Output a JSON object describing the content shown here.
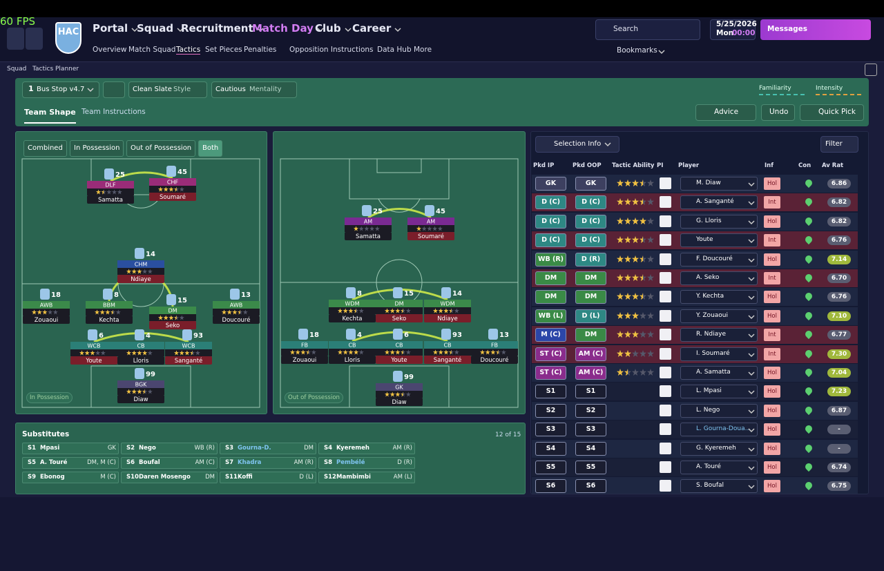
{
  "top": {
    "fps": "60 FPS",
    "club": "HAC",
    "menu": [
      "Portal",
      "Squad",
      "Recruitment",
      "Match Day",
      "Club",
      "Career"
    ],
    "submenu": [
      "Overview",
      "Match Squad",
      "Tactics",
      "Set Pieces",
      "Penalties",
      "Opposition Instructions",
      "Data Hub",
      "More"
    ],
    "search": "Search",
    "date": "5/25/2026",
    "day": "Mon",
    "time": "00:00",
    "messages": "Messages",
    "bookmarks": "Bookmarks"
  },
  "breadcrumb": [
    "Squad",
    "Tactics Planner"
  ],
  "toolbar": {
    "slot": "1",
    "tactic": "Bus Stop v4.7",
    "style": "Clean Slate",
    "style_label": "Style",
    "mentality": "Cautious",
    "mentality_label": "Mentality",
    "familiarity": "Familiarity",
    "intensity": "Intensity",
    "tabs": [
      "Team Shape",
      "Team Instructions"
    ],
    "advice": "Advice",
    "undo": "Undo",
    "quick_pick": "Quick Pick"
  },
  "pitches": [
    {
      "modes": [
        "Combined",
        "In Possession",
        "Out of Possession",
        "Both"
      ],
      "label": "In Possession",
      "players": [
        {
          "number": 25,
          "role": "DLF",
          "name": "Samatta",
          "stars": 1.5,
          "colors": [
            "#9a2c78",
            "#1b1b24"
          ]
        },
        {
          "number": 45,
          "role": "CHF",
          "name": "Soumaré",
          "stars": 3.5,
          "colors": [
            "#9a2c78",
            "#7a1e2a"
          ]
        },
        {
          "number": 14,
          "role": "CHM",
          "name": "Ndiaye",
          "stars": 3,
          "colors": [
            "#2a4fa0",
            "#7a1e2a"
          ]
        },
        {
          "number": 18,
          "role": "AWB",
          "name": "Zouaoui",
          "stars": 3,
          "colors": [
            "#3b8a4a",
            "#1b1b24"
          ]
        },
        {
          "number": 8,
          "role": "BBM",
          "name": "Kechta",
          "stars": 3.5,
          "colors": [
            "#3b8a4a",
            "#1b1b24"
          ]
        },
        {
          "number": 15,
          "role": "DM",
          "name": "Seko",
          "stars": 3.5,
          "colors": [
            "#3b8a4a",
            "#7a1e2a"
          ]
        },
        {
          "number": 13,
          "role": "AWB",
          "name": "Doucouré",
          "stars": 3.5,
          "colors": [
            "#3b8a4a",
            "#1b1b24"
          ]
        },
        {
          "number": 6,
          "role": "WCB",
          "name": "Youte",
          "stars": 3,
          "colors": [
            "#2b7f77",
            "#7a1e2a"
          ]
        },
        {
          "number": 4,
          "role": "CB",
          "name": "Lloris",
          "stars": 4,
          "colors": [
            "#2b7f77",
            "#1b1b24"
          ]
        },
        {
          "number": 93,
          "role": "WCB",
          "name": "Sanganté",
          "stars": 3.5,
          "colors": [
            "#2b7f77",
            "#7a1e2a"
          ]
        },
        {
          "number": 99,
          "role": "BGK",
          "name": "Diaw",
          "stars": 3.5,
          "colors": [
            "#4b4670",
            "#1b1b24"
          ]
        }
      ]
    },
    {
      "label": "Out of Possession",
      "players": [
        {
          "number": 25,
          "role": "AM",
          "name": "Samatta",
          "stars": 1,
          "colors": [
            "#7a2a92",
            "#1b1b24"
          ]
        },
        {
          "number": 45,
          "role": "AM",
          "name": "Soumaré",
          "stars": 1,
          "colors": [
            "#7a2a92",
            "#7a1e2a"
          ]
        },
        {
          "number": 8,
          "role": "WDM",
          "name": "Kechta",
          "stars": 3.5,
          "colors": [
            "#3b8a4a",
            "#1b1b24"
          ]
        },
        {
          "number": 15,
          "role": "DM",
          "name": "Seko",
          "stars": 3.5,
          "colors": [
            "#3b8a4a",
            "#7a1e2a"
          ]
        },
        {
          "number": 14,
          "role": "WDM",
          "name": "Ndiaye",
          "stars": 3.5,
          "colors": [
            "#3b8a4a",
            "#7a1e2a"
          ]
        },
        {
          "number": 18,
          "role": "FB",
          "name": "Zouaoui",
          "stars": 3.5,
          "colors": [
            "#2b7f77",
            "#1b1b24"
          ]
        },
        {
          "number": 4,
          "role": "CB",
          "name": "Lloris",
          "stars": 4,
          "colors": [
            "#2b7f77",
            "#1b1b24"
          ]
        },
        {
          "number": 6,
          "role": "CB",
          "name": "Youte",
          "stars": 3.5,
          "colors": [
            "#2b7f77",
            "#7a1e2a"
          ]
        },
        {
          "number": 93,
          "role": "CB",
          "name": "Sanganté",
          "stars": 3.5,
          "colors": [
            "#2b7f77",
            "#7a1e2a"
          ]
        },
        {
          "number": 13,
          "role": "FB",
          "name": "Doucouré",
          "stars": 3.5,
          "colors": [
            "#2b7f77",
            "#1b1b24"
          ]
        },
        {
          "number": 99,
          "role": "GK",
          "name": "Diaw",
          "stars": 3.5,
          "colors": [
            "#4b4670",
            "#1b1b24"
          ]
        }
      ]
    }
  ],
  "substitutes": {
    "title": "Substitutes",
    "count": "12 of 15",
    "players": [
      {
        "slot": "S1",
        "name": "Mpasi",
        "position": "GK"
      },
      {
        "slot": "S2",
        "name": "Nego",
        "position": "WB (R)"
      },
      {
        "slot": "S3",
        "name": "Gourna-D.",
        "position": "DM",
        "color": "#7fc4f0"
      },
      {
        "slot": "S4",
        "name": "Kyeremeh",
        "position": "AM (R)"
      },
      {
        "slot": "S5",
        "name": "A. Touré",
        "position": "DM, M (C)"
      },
      {
        "slot": "S6",
        "name": "Boufal",
        "position": "AM (C)"
      },
      {
        "slot": "S7",
        "name": "Khadra",
        "position": "AM (R)",
        "color": "#7fc4f0"
      },
      {
        "slot": "S8",
        "name": "Pembélé",
        "position": "D (R)",
        "color": "#7fc4f0"
      },
      {
        "slot": "S9",
        "name": "Ebonog",
        "position": "M (C)"
      },
      {
        "slot": "S10",
        "name": "Daren Mosengo",
        "position": "DM"
      },
      {
        "slot": "S11",
        "name": "Koffi",
        "position": "D (L)"
      },
      {
        "slot": "S12",
        "name": "Mambimbi",
        "position": "AM (L)"
      }
    ]
  },
  "selection": {
    "info": "Selection Info",
    "filter": "Filter",
    "columns": [
      "Pkd IP",
      "Pkd OOP",
      "Tactic Ability",
      "PI",
      "Player",
      "Inf",
      "Con",
      "Av Rat"
    ],
    "rows": [
      {
        "ip": "GK",
        "oop": "GK",
        "ability": 3.5,
        "player": "M. Diaw",
        "inf": "Hol",
        "rating": "6.86",
        "colors": [
          "#3d4060",
          "#3d4060",
          "#1e2742",
          "#5a5e72"
        ]
      },
      {
        "ip": "D (C)",
        "oop": "D (C)",
        "ability": 3.5,
        "player": "A. Sanganté",
        "inf": "Int",
        "rating": "6.82",
        "colors": [
          "#2e8884",
          "#2e8884",
          "#5a2236",
          "#5a5e72"
        ]
      },
      {
        "ip": "D (C)",
        "oop": "D (C)",
        "ability": 4,
        "player": "G. Lloris",
        "inf": "Hol",
        "rating": "6.82",
        "colors": [
          "#2e8884",
          "#2e8884",
          "#1e2742",
          "#5a5e72"
        ]
      },
      {
        "ip": "D (C)",
        "oop": "D (C)",
        "ability": 3.5,
        "player": "Youte",
        "inf": "Int",
        "rating": "6.76",
        "colors": [
          "#2e8884",
          "#2e8884",
          "#5a2236",
          "#5a5e72"
        ]
      },
      {
        "ip": "WB (R)",
        "oop": "D (R)",
        "ability": 3.5,
        "player": "F. Doucouré",
        "inf": "Hol",
        "rating": "7.14",
        "colors": [
          "#3a8a46",
          "#2e8884",
          "#1e2742",
          "#a0b83c"
        ]
      },
      {
        "ip": "DM",
        "oop": "DM",
        "ability": 3.5,
        "player": "A. Seko",
        "inf": "Int",
        "rating": "6.70",
        "colors": [
          "#3a8a46",
          "#3a8a46",
          "#5a2236",
          "#5a5e72"
        ]
      },
      {
        "ip": "DM",
        "oop": "DM",
        "ability": 3.5,
        "player": "Y. Kechta",
        "inf": "Hol",
        "rating": "6.76",
        "colors": [
          "#3a8a46",
          "#3a8a46",
          "#1e2742",
          "#5a5e72"
        ]
      },
      {
        "ip": "WB (L)",
        "oop": "D (L)",
        "ability": 3,
        "player": "Y. Zouaoui",
        "inf": "Hol",
        "rating": "7.10",
        "colors": [
          "#3a8a46",
          "#2e8884",
          "#1e2742",
          "#a0b83c"
        ]
      },
      {
        "ip": "M (C)",
        "oop": "DM",
        "ability": 3,
        "player": "R. Ndiaye",
        "inf": "Int",
        "rating": "6.77",
        "colors": [
          "#2b46a8",
          "#3a8a46",
          "#5a2236",
          "#5a5e72"
        ]
      },
      {
        "ip": "ST (C)",
        "oop": "AM (C)",
        "ability": 2,
        "player": "I. Soumaré",
        "inf": "Int",
        "rating": "7.30",
        "colors": [
          "#8a2c8c",
          "#8a2c8c",
          "#5a2236",
          "#a0b83c"
        ]
      },
      {
        "ip": "ST (C)",
        "oop": "AM (C)",
        "ability": 1.5,
        "player": "A. Samatta",
        "inf": "Hol",
        "rating": "7.04",
        "colors": [
          "#8a2c8c",
          "#8a2c8c",
          "#1e2742",
          "#a0b83c"
        ]
      },
      {
        "ip": "S1",
        "oop": "S1",
        "ability": null,
        "player": "L. Mpasi",
        "inf": "Hol",
        "rating": "7.23",
        "colors": [
          "#1a1d30",
          "#1a1d30",
          "#1a2038",
          "#a0b83c"
        ]
      },
      {
        "ip": "S2",
        "oop": "S2",
        "ability": null,
        "player": "L. Nego",
        "inf": "Hol",
        "rating": "6.87",
        "colors": [
          "#1a1d30",
          "#1a1d30",
          "#1e2742",
          "#5a5e72"
        ]
      },
      {
        "ip": "S3",
        "oop": "S3",
        "ability": null,
        "player": "L. Gourna-Doua...",
        "inf": "Hol",
        "rating": "-",
        "colors": [
          "#1a1d30",
          "#1a1d30",
          "#1a2038",
          "#5a5e72"
        ]
      },
      {
        "ip": "S4",
        "oop": "S4",
        "ability": null,
        "player": "G. Kyeremeh",
        "inf": "Hol",
        "rating": "-",
        "colors": [
          "#1a1d30",
          "#1a1d30",
          "#1e2742",
          "#5a5e72"
        ]
      },
      {
        "ip": "S5",
        "oop": "S5",
        "ability": null,
        "player": "A. Touré",
        "inf": "Hol",
        "rating": "6.74",
        "colors": [
          "#1a1d30",
          "#1a1d30",
          "#1a2038",
          "#5a5e72"
        ]
      },
      {
        "ip": "S6",
        "oop": "S6",
        "ability": null,
        "player": "S. Boufal",
        "inf": "Hol",
        "rating": "6.75",
        "colors": [
          "#1a1d30",
          "#1a1d30",
          "#1e2742",
          "#5a5e72"
        ]
      }
    ]
  }
}
